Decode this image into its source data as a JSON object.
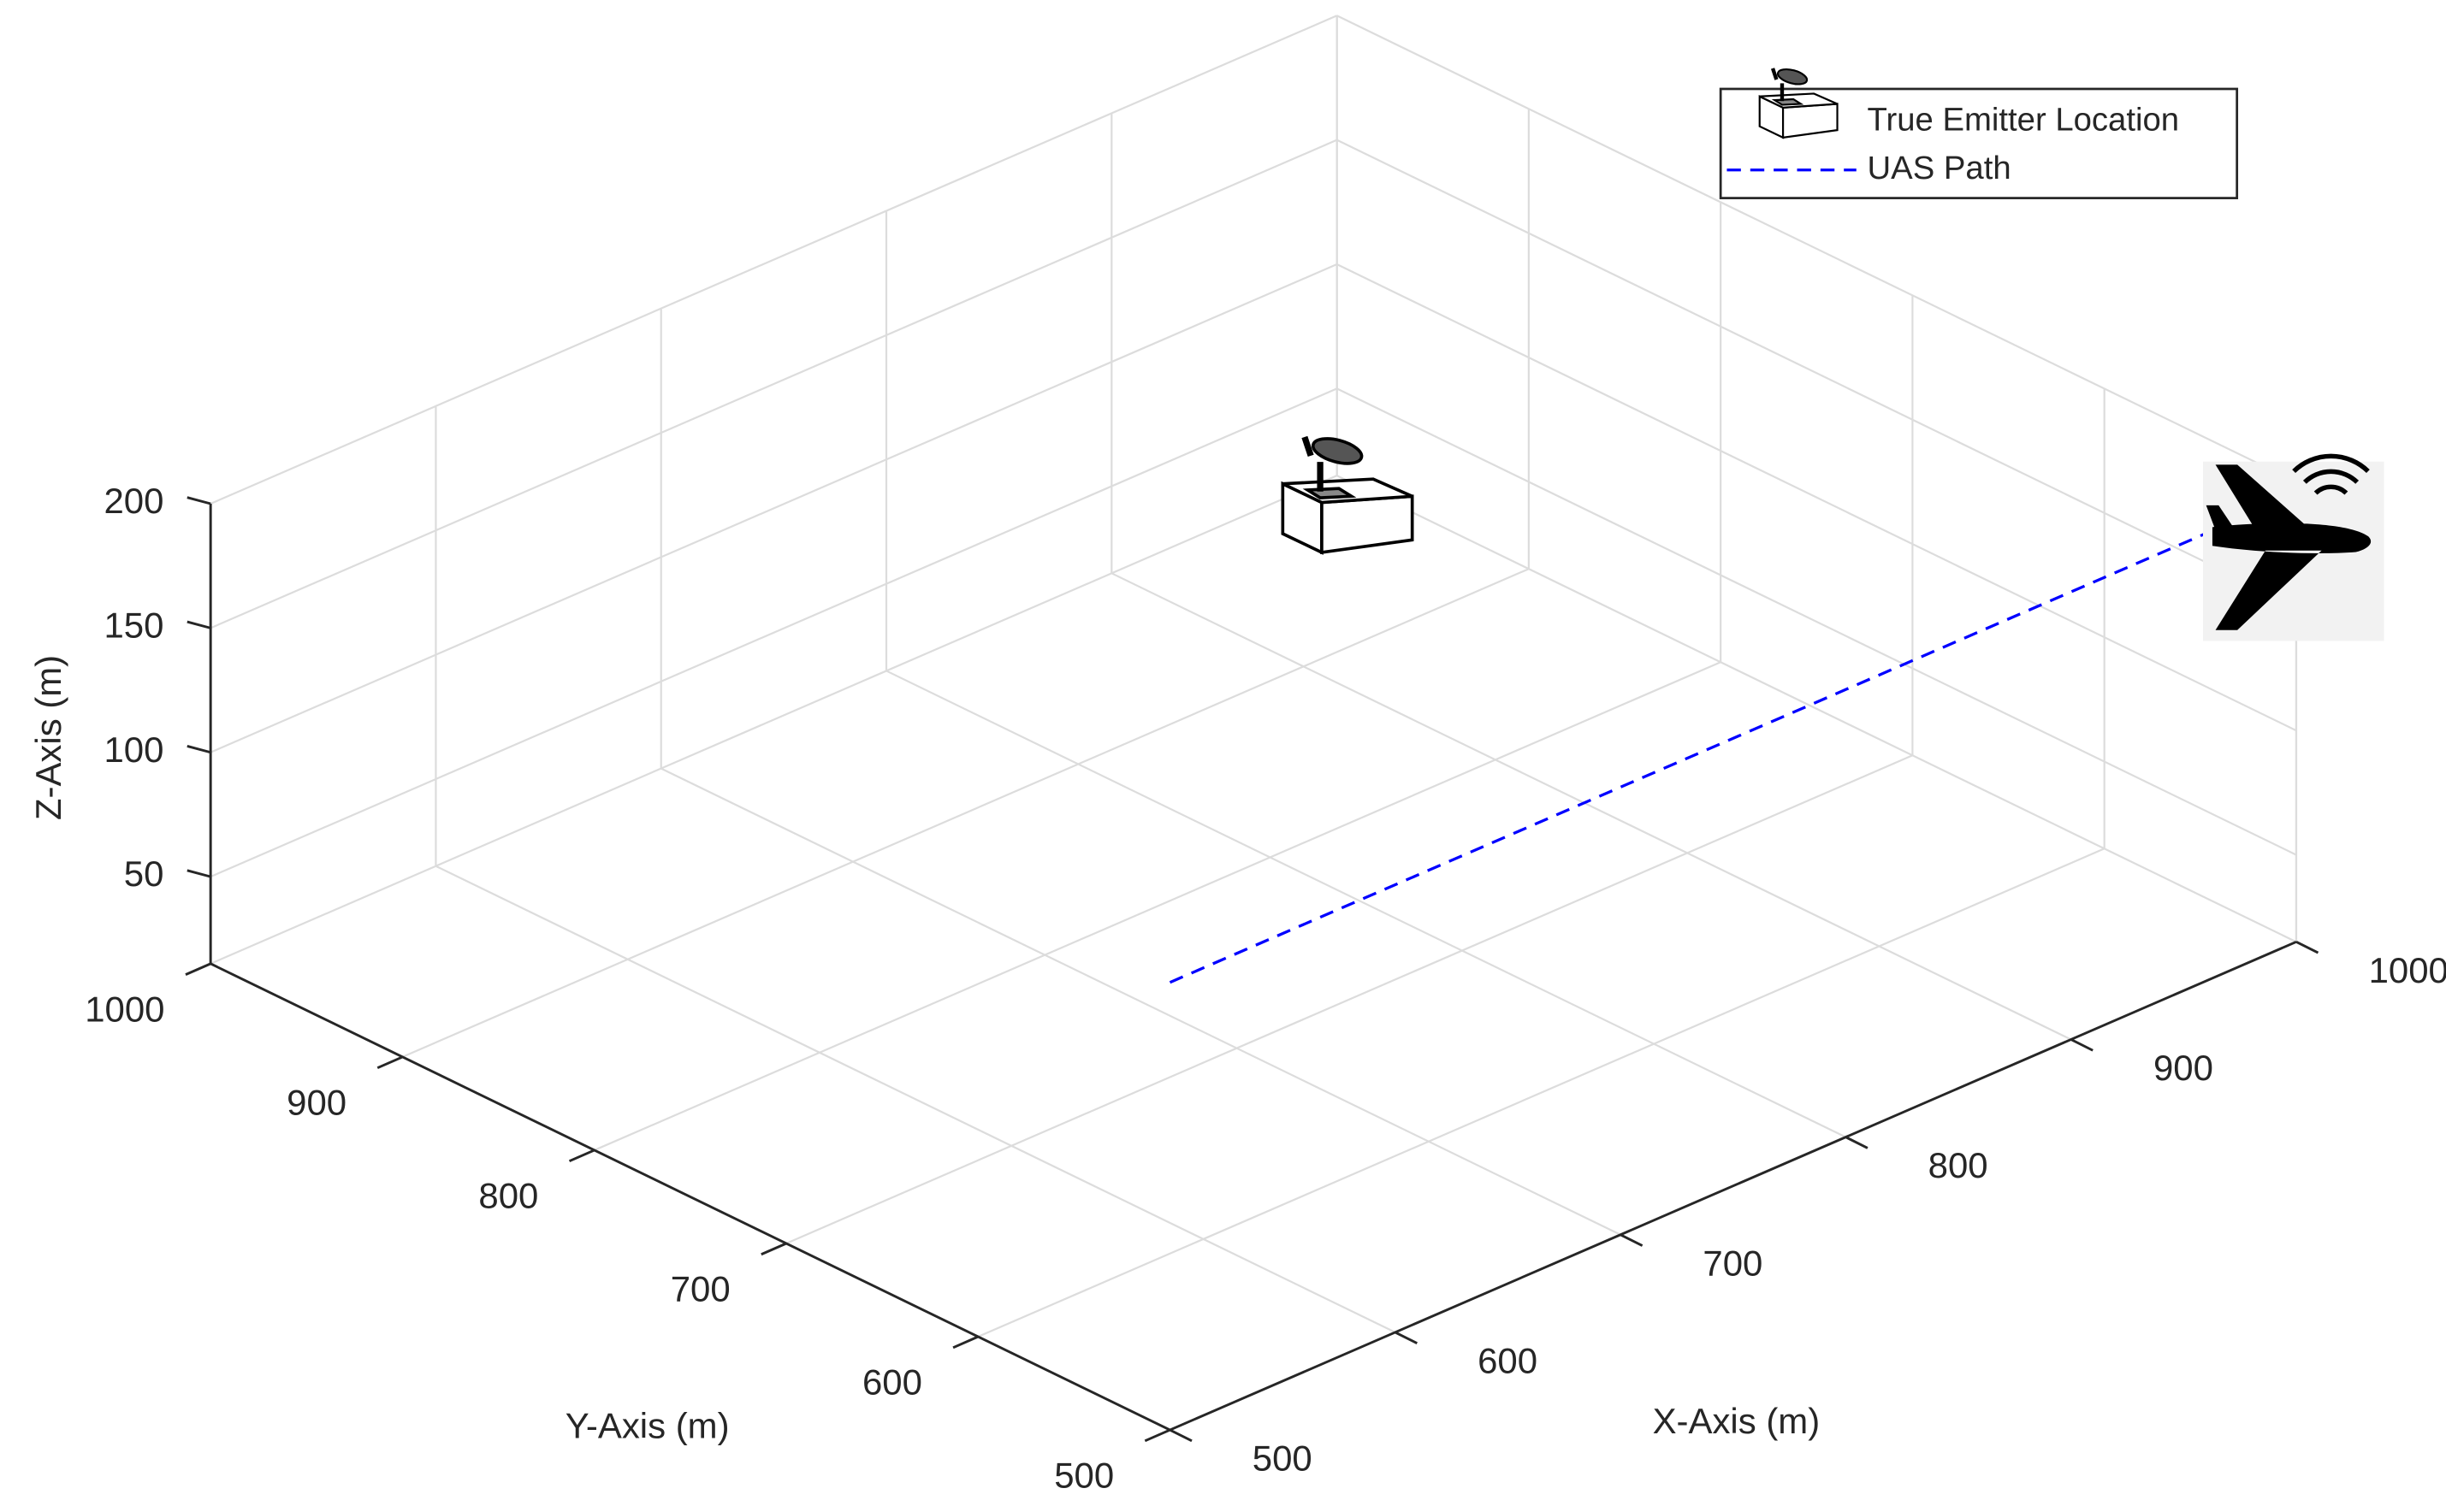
{
  "chart_data": {
    "type": "line3d",
    "xlabel": "X-Axis (m)",
    "ylabel": "Y-Axis (m)",
    "zlabel": "Z-Axis (m)",
    "xlim": [
      500,
      1000
    ],
    "ylim": [
      500,
      1000
    ],
    "zlim": [
      15,
      200
    ],
    "xticks": [
      500,
      600,
      700,
      800,
      900,
      1000
    ],
    "yticks": [
      500,
      600,
      700,
      800,
      900,
      1000
    ],
    "zticks": [
      50,
      100,
      150,
      200
    ],
    "grid": true,
    "emitter": {
      "name": "True Emitter Location",
      "x": 950,
      "y": 950,
      "z": 20
    },
    "series": [
      {
        "name": "UAS Path",
        "color": "#0000ff",
        "x": [
          500,
          960
        ],
        "y": [
          500,
          500
        ],
        "z": [
          195,
          195
        ]
      }
    ]
  }
}
